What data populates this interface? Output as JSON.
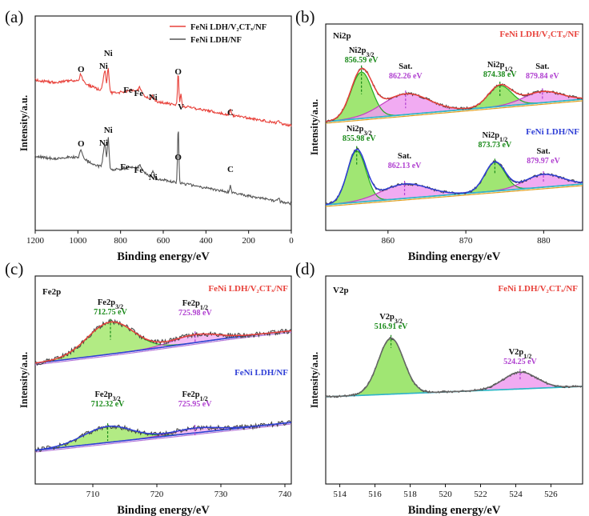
{
  "chart_data": [
    {
      "id": "a",
      "panel_label": "(a)",
      "type": "line",
      "xlabel": "Binding energy/eV",
      "ylabel": "Intensity/a.u.",
      "xlim": [
        1200,
        0
      ],
      "xticks": [
        "1200",
        "1000",
        "800",
        "600",
        "400",
        "200",
        "0"
      ],
      "legend": [
        {
          "name": "FeNi LDH/V₂CTₓ/NF",
          "color": "#e8413a"
        },
        {
          "name": "FeNi LDH/NF",
          "color": "#555555"
        }
      ],
      "series": [
        {
          "name": "FeNi LDH/V₂CTₓ/NF",
          "color": "#e8413a",
          "labels": [
            {
              "text": "O",
              "x": 985
            },
            {
              "text": "Ni",
              "x": 880
            },
            {
              "text": "Ni",
              "x": 858
            },
            {
              "text": "Fe",
              "x": 765
            },
            {
              "text": "Fe",
              "x": 715
            },
            {
              "text": "Ni",
              "x": 648
            },
            {
              "text": "O",
              "x": 530
            },
            {
              "text": "V",
              "x": 517
            },
            {
              "text": "C",
              "x": 285
            }
          ]
        },
        {
          "name": "FeNi LDH/NF",
          "color": "#555555",
          "labels": [
            {
              "text": "O",
              "x": 985
            },
            {
              "text": "Ni",
              "x": 880
            },
            {
              "text": "Ni",
              "x": 858
            },
            {
              "text": "Fe",
              "x": 780
            },
            {
              "text": "Fe",
              "x": 715
            },
            {
              "text": "Ni",
              "x": 648
            },
            {
              "text": "O",
              "x": 530
            },
            {
              "text": "C",
              "x": 285
            }
          ]
        }
      ]
    },
    {
      "id": "b",
      "panel_label": "(b)",
      "type": "line",
      "title": "Ni2p",
      "xlabel": "Binding energy/eV",
      "ylabel": "Intensity/a.u.",
      "xlim": [
        852,
        885
      ],
      "xticks": [
        "860",
        "870",
        "880"
      ],
      "series": [
        {
          "name": "FeNi LDH/V₂CTₓ/NF",
          "color": "#e8413a",
          "peaks": [
            {
              "label": "Ni2p3/2",
              "value": "856.59 eV",
              "x": 856.59,
              "fill": "#8fe25a"
            },
            {
              "label": "Sat.",
              "value": "862.26 eV",
              "x": 862.26,
              "fill": "#ef9cf0"
            },
            {
              "label": "Ni2p1/2",
              "value": "874.38 eV",
              "x": 874.38,
              "fill": "#8fe25a"
            },
            {
              "label": "Sat.",
              "value": "879.84 eV",
              "x": 879.84,
              "fill": "#ef9cf0"
            }
          ]
        },
        {
          "name": "FeNi LDH/NF",
          "color": "#2f3fd6",
          "peaks": [
            {
              "label": "Ni2p3/2",
              "value": "855.98 eV",
              "x": 855.98,
              "fill": "#8fe25a"
            },
            {
              "label": "Sat.",
              "value": "862.13 eV",
              "x": 862.13,
              "fill": "#ef9cf0"
            },
            {
              "label": "Ni2p1/2",
              "value": "873.73 eV",
              "x": 873.73,
              "fill": "#8fe25a"
            },
            {
              "label": "Sat.",
              "value": "879.97 eV",
              "x": 879.97,
              "fill": "#ef9cf0"
            }
          ]
        }
      ]
    },
    {
      "id": "c",
      "panel_label": "(c)",
      "type": "line",
      "title": "Fe2p",
      "xlabel": "Binding energy/eV",
      "ylabel": "Intensity/a.u.",
      "xlim": [
        701,
        741
      ],
      "xticks": [
        "710",
        "720",
        "730",
        "740"
      ],
      "series": [
        {
          "name": "FeNi LDH/V₂CTₓ/NF",
          "color": "#e8413a",
          "peaks": [
            {
              "label": "Fe2p3/2",
              "value": "712.75 eV",
              "x": 712.75,
              "fill": "#a4e86e"
            },
            {
              "label": "Fe2p1/2",
              "value": "725.98 eV",
              "x": 725.98,
              "fill": "#f2b2f2"
            }
          ]
        },
        {
          "name": "FeNi LDH/NF",
          "color": "#2f3fd6",
          "peaks": [
            {
              "label": "Fe2p3/2",
              "value": "712.32 eV",
              "x": 712.32,
              "fill": "#a4e86e"
            },
            {
              "label": "Fe2p1/2",
              "value": "725.95 eV",
              "x": 725.95,
              "fill": "#f2b2f2"
            }
          ]
        }
      ]
    },
    {
      "id": "d",
      "panel_label": "(d)",
      "type": "line",
      "title": "V2p",
      "xlabel": "Binding energy/eV",
      "ylabel": "Intensity/a.u.",
      "xlim": [
        513.2,
        527.8
      ],
      "xticks": [
        "514",
        "516",
        "518",
        "520",
        "522",
        "524",
        "526"
      ],
      "series": [
        {
          "name": "FeNi LDH/V₂CTₓ/NF",
          "color": "#e8413a",
          "peaks": [
            {
              "label": "V2p3/2",
              "value": "516.91 eV",
              "x": 516.91,
              "fill": "#8fe25a"
            },
            {
              "label": "V2p1/2",
              "value": "524.25 eV",
              "x": 524.25,
              "fill": "#ef9cf0"
            }
          ]
        }
      ]
    }
  ]
}
